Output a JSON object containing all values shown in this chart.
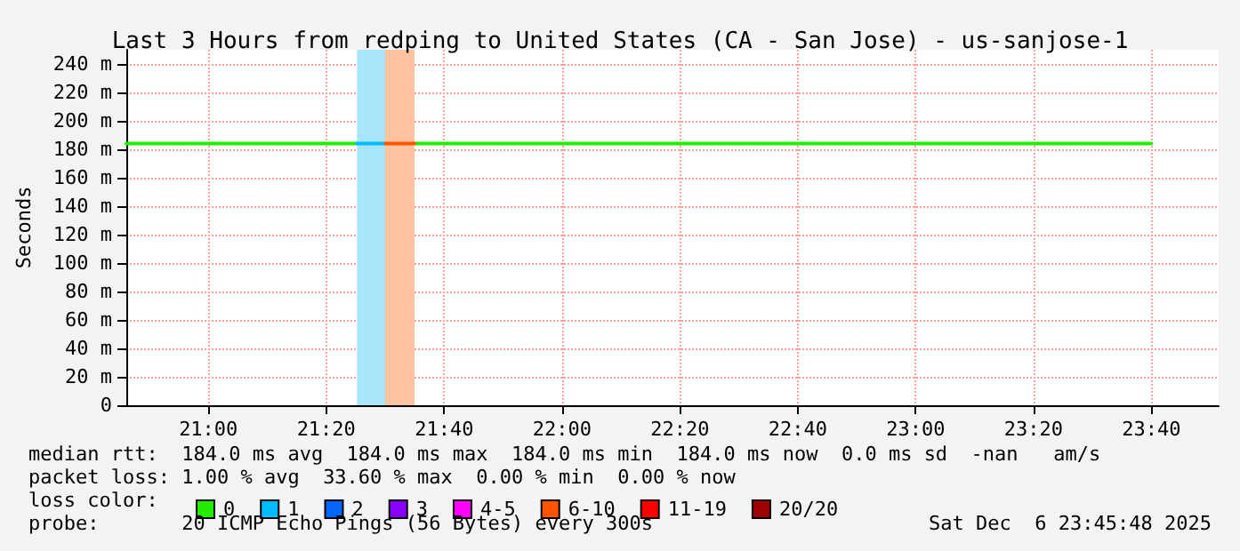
{
  "chart_data": {
    "type": "line",
    "title": "Last 3 Hours from redping to United States (CA - San Jose) - us-sanjose-1",
    "ylabel": "Seconds",
    "legend_title": "loss color:",
    "xlim": [
      20.768,
      23.857
    ],
    "ylim": [
      0,
      250
    ],
    "xticks": [
      {
        "value": 21,
        "label": "21:00"
      },
      {
        "value": 21.3333,
        "label": "21:20"
      },
      {
        "value": 21.6667,
        "label": "21:40"
      },
      {
        "value": 22,
        "label": "22:00"
      },
      {
        "value": 22.3333,
        "label": "22:20"
      },
      {
        "value": 22.6667,
        "label": "22:40"
      },
      {
        "value": 23,
        "label": "23:00"
      },
      {
        "value": 23.3333,
        "label": "23:20"
      },
      {
        "value": 23.6667,
        "label": "23:40"
      }
    ],
    "yticks": [
      0,
      {
        "value": 20,
        "label": "20 m"
      },
      {
        "value": 40,
        "label": "40 m"
      },
      {
        "value": 60,
        "label": "60 m"
      },
      {
        "value": 80,
        "label": "80 m"
      },
      {
        "value": 100,
        "label": "100 m"
      },
      {
        "value": 120,
        "label": "120 m"
      },
      {
        "value": 140,
        "label": "140 m"
      },
      {
        "value": 160,
        "label": "160 m"
      },
      {
        "value": 180,
        "label": "180 m"
      },
      {
        "value": 200,
        "label": "200 m"
      },
      {
        "value": 220,
        "label": "220 m"
      },
      {
        "value": 240,
        "label": "240 m"
      }
    ],
    "series": [
      {
        "name": "0",
        "color": "#22ee00",
        "x": [
          20.768,
          21.42,
          21.5,
          21.583,
          23.667
        ],
        "values": [
          184,
          184,
          null,
          184,
          184
        ]
      },
      {
        "name": "1",
        "color": "#00bbff",
        "x": [
          21.42,
          21.5
        ],
        "values": [
          184,
          184
        ]
      },
      {
        "name": "2",
        "color": "#0066ff"
      },
      {
        "name": "3",
        "color": "#8a00ff"
      },
      {
        "name": "4-5",
        "color": "#ff00ff"
      },
      {
        "name": "6-10",
        "color": "#ff5500",
        "x": [
          21.5,
          21.583
        ],
        "values": [
          184,
          184
        ]
      },
      {
        "name": "11-19",
        "color": "#ff0000"
      },
      {
        "name": "20/20",
        "color": "#a10000"
      }
    ],
    "bands": [
      {
        "axis": "x",
        "from": 21.42,
        "to": 21.5,
        "color": "#a8e4fa"
      },
      {
        "axis": "x",
        "from": 21.5,
        "to": 21.583,
        "color": "#ffc3a0"
      }
    ],
    "annotations": [
      "median rtt:  184.0 ms avg  184.0 ms max  184.0 ms min  184.0 ms now  0.0 ms sd  -nan   am/s",
      "packet loss: 1.00 % avg  33.60 % max  0.00 % min  0.00 % now",
      "probe:       20 ICMP Echo Pings (56 Bytes) every 300s",
      "Sat Dec  6 23:45:48 2025"
    ],
    "grid": true,
    "legend": "bottom",
    "marker": "none",
    "line_style": "solid"
  }
}
